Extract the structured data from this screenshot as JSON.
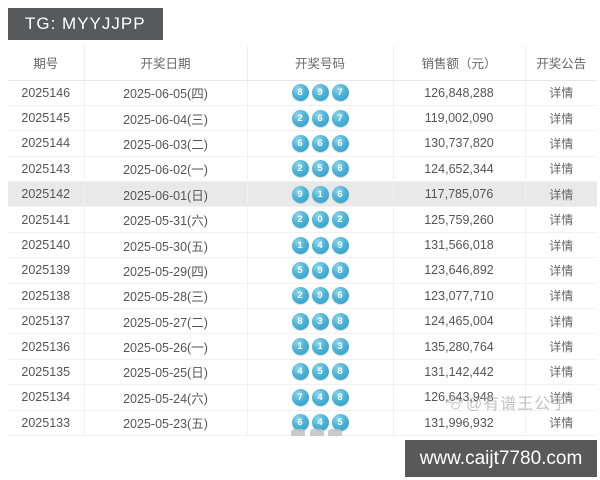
{
  "badge": {
    "label": "TG: MYYJJPP"
  },
  "table": {
    "headers": [
      "期号",
      "开奖日期",
      "开奖号码",
      "销售额（元）",
      "开奖公告"
    ],
    "detail_label": "详情",
    "rows": [
      {
        "issue": "2025146",
        "date": "2025-06-05(四)",
        "numbers": [
          8,
          9,
          7
        ],
        "sales": "126,848,288",
        "highlighted": false
      },
      {
        "issue": "2025145",
        "date": "2025-06-04(三)",
        "numbers": [
          2,
          6,
          7
        ],
        "sales": "119,002,090",
        "highlighted": false
      },
      {
        "issue": "2025144",
        "date": "2025-06-03(二)",
        "numbers": [
          6,
          6,
          6
        ],
        "sales": "130,737,820",
        "highlighted": false
      },
      {
        "issue": "2025143",
        "date": "2025-06-02(一)",
        "numbers": [
          2,
          5,
          6
        ],
        "sales": "124,652,344",
        "highlighted": false
      },
      {
        "issue": "2025142",
        "date": "2025-06-01(日)",
        "numbers": [
          9,
          1,
          6
        ],
        "sales": "117,785,076",
        "highlighted": true
      },
      {
        "issue": "2025141",
        "date": "2025-05-31(六)",
        "numbers": [
          2,
          0,
          2
        ],
        "sales": "125,759,260",
        "highlighted": false
      },
      {
        "issue": "2025140",
        "date": "2025-05-30(五)",
        "numbers": [
          1,
          4,
          9
        ],
        "sales": "131,566,018",
        "highlighted": false
      },
      {
        "issue": "2025139",
        "date": "2025-05-29(四)",
        "numbers": [
          5,
          9,
          8
        ],
        "sales": "123,646,892",
        "highlighted": false
      },
      {
        "issue": "2025138",
        "date": "2025-05-28(三)",
        "numbers": [
          2,
          9,
          6
        ],
        "sales": "123,077,710",
        "highlighted": false
      },
      {
        "issue": "2025137",
        "date": "2025-05-27(二)",
        "numbers": [
          8,
          3,
          8
        ],
        "sales": "124,465,004",
        "highlighted": false
      },
      {
        "issue": "2025136",
        "date": "2025-05-26(一)",
        "numbers": [
          1,
          1,
          3
        ],
        "sales": "135,280,764",
        "highlighted": false
      },
      {
        "issue": "2025135",
        "date": "2025-05-25(日)",
        "numbers": [
          4,
          5,
          8
        ],
        "sales": "131,142,442",
        "highlighted": false
      },
      {
        "issue": "2025134",
        "date": "2025-05-24(六)",
        "numbers": [
          7,
          4,
          8
        ],
        "sales": "126,643,948",
        "highlighted": false
      },
      {
        "issue": "2025133",
        "date": "2025-05-23(五)",
        "numbers": [
          6,
          4,
          5
        ],
        "sales": "131,996,932",
        "highlighted": false
      }
    ]
  },
  "watermark_credit": {
    "label": "@有谱王公子",
    "icon": "paw-icon"
  },
  "watermark_site": {
    "label": "www.caijt7780.com"
  },
  "colors": {
    "ball": "#2d9cc6",
    "badge_bg": "#58595b",
    "highlight_row": "#e9e9e9",
    "watermark_bg": "#595959",
    "text": "#555555"
  }
}
